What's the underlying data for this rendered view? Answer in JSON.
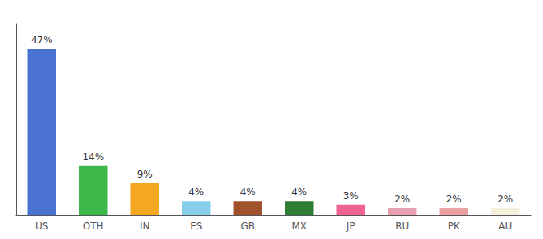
{
  "chart_data": {
    "type": "bar",
    "categories": [
      "US",
      "OTH",
      "IN",
      "ES",
      "GB",
      "MX",
      "JP",
      "RU",
      "PK",
      "AU"
    ],
    "values": [
      47,
      14,
      9,
      4,
      4,
      4,
      3,
      2,
      2,
      2
    ],
    "value_labels": [
      "47%",
      "14%",
      "9%",
      "4%",
      "4%",
      "4%",
      "3%",
      "2%",
      "2%",
      "2%"
    ],
    "colors": [
      "#4a72d1",
      "#3cb84a",
      "#f5a623",
      "#87ceeb",
      "#a0522d",
      "#2e7d32",
      "#f06292",
      "#e8a0b0",
      "#e8a0a0",
      "#f5f0dc"
    ],
    "ylim": [
      0,
      54
    ],
    "data_labels": true,
    "grid": false,
    "tick_labels": "x"
  }
}
